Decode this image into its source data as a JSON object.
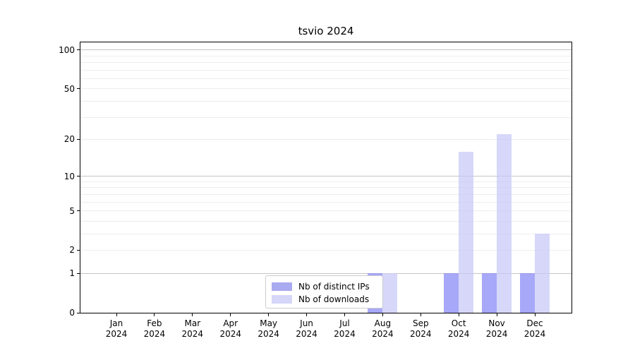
{
  "title": "tsvio 2024",
  "chart_data": {
    "type": "bar",
    "title": "tsvio 2024",
    "x_label_year": "2024",
    "categories": [
      "Jan",
      "Feb",
      "Mar",
      "Apr",
      "May",
      "Jun",
      "Jul",
      "Aug",
      "Sep",
      "Oct",
      "Nov",
      "Dec"
    ],
    "series": [
      {
        "name": "Nb of distinct IPs",
        "values": [
          0,
          0,
          0,
          0,
          0,
          0,
          0,
          1,
          0,
          1,
          1,
          1
        ]
      },
      {
        "name": "Nb of downloads",
        "values": [
          0,
          0,
          0,
          0,
          0,
          0,
          0,
          1,
          0,
          16,
          22,
          3
        ]
      }
    ],
    "y_scale": "log1p",
    "y_ticks": [
      0,
      1,
      2,
      5,
      10,
      20,
      50,
      100
    ],
    "y_grid_major": [
      1,
      10,
      100
    ],
    "y_grid_minor": [
      2,
      3,
      4,
      5,
      6,
      7,
      8,
      9,
      20,
      30,
      40,
      50,
      60,
      70,
      80,
      90
    ],
    "y_max": 114.5,
    "legend": {
      "position": "lower center"
    },
    "colors": {
      "series": [
        "rgba(134,134,245,0.72)",
        "rgba(199,199,248,0.72)"
      ],
      "legend_swatches": [
        "#aaaaf0",
        "#d6d6f8"
      ],
      "grid_major": "#c4c4c4",
      "grid_minor": "#ededed",
      "axis": "#000000"
    }
  }
}
